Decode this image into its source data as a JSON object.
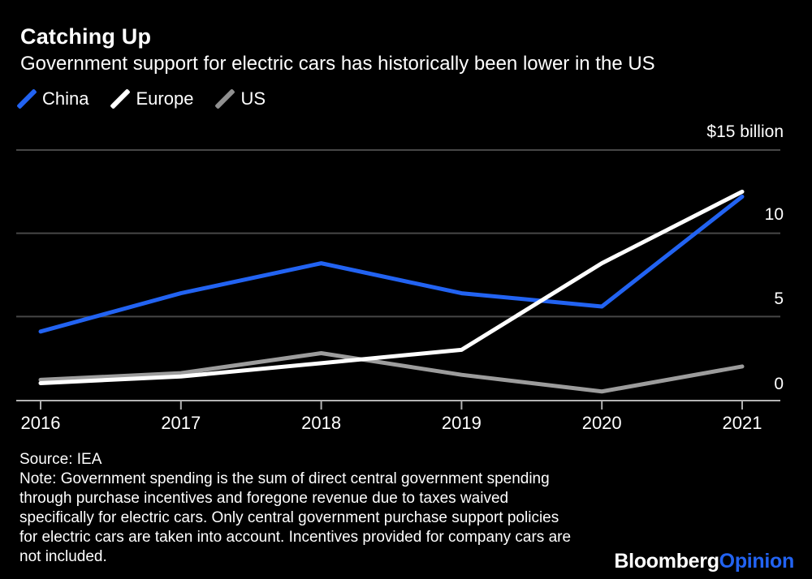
{
  "header": {
    "title": "Catching Up",
    "subtitle": "Government support for electric cars has historically been lower in the US"
  },
  "legend": [
    {
      "label": "China",
      "color": "#2263f2"
    },
    {
      "label": "Europe",
      "color": "#ffffff"
    },
    {
      "label": "US",
      "color": "#909090"
    }
  ],
  "chart_data": {
    "type": "line",
    "title": "Catching Up",
    "subtitle": "Government support for electric cars has historically been lower in the US",
    "unit": "billion USD",
    "x": [
      2016,
      2017,
      2018,
      2019,
      2020,
      2021
    ],
    "series": [
      {
        "name": "China",
        "color": "#2263f2",
        "values": [
          4.1,
          6.4,
          8.2,
          6.4,
          5.6,
          12.2
        ]
      },
      {
        "name": "Europe",
        "color": "#ffffff",
        "values": [
          1.0,
          1.4,
          2.2,
          3.0,
          8.2,
          12.5
        ]
      },
      {
        "name": "US",
        "color": "#9c9c9c",
        "values": [
          1.2,
          1.6,
          2.8,
          1.5,
          0.5,
          2.0
        ]
      }
    ],
    "ylim": [
      0,
      15
    ],
    "yticks": [
      0,
      5,
      10,
      15
    ],
    "ytick_labels": [
      "0",
      "5",
      "10",
      "$15 billion"
    ],
    "grid": "horizontal",
    "legend_position": "top-left"
  },
  "axis": {
    "y_labels": [
      "$15 billion",
      "10",
      "5",
      "0"
    ],
    "years": [
      "2016",
      "2017",
      "2018",
      "2019",
      "2020",
      "2021"
    ]
  },
  "footer": {
    "source": "Source: IEA",
    "note_lines": [
      "Note: Government spending is the sum of direct central government spending",
      "through purchase incentives and foregone revenue due to taxes waived",
      "specifically for electric cars. Only central government purchase support policies",
      "for electric cars are taken into account. Incentives provided for company cars are",
      "not included."
    ],
    "logo_bloomberg": "Bloomberg",
    "logo_opinion": "Opinion"
  },
  "colors": {
    "background": "#000000",
    "text": "#ffffff",
    "gridline": "#474747",
    "axis_line": "#b3b3b3",
    "logo_blue": "#2263f2"
  }
}
